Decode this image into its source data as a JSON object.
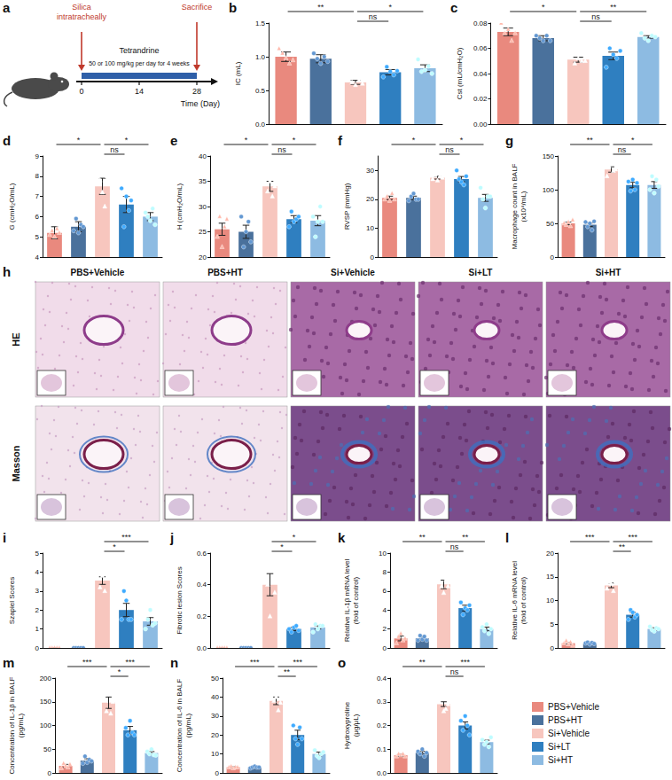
{
  "groups": [
    {
      "name": "PBS+Vehicle",
      "color": "#e9897e",
      "marker": "triangle"
    },
    {
      "name": "PBS+HT",
      "color": "#4a719c",
      "marker": "circle"
    },
    {
      "name": "Si+Vehicle",
      "color": "#f7c6be",
      "marker": "triangle"
    },
    {
      "name": "Si+LT",
      "color": "#2f7fc0",
      "marker": "circle"
    },
    {
      "name": "Si+HT",
      "color": "#8dbbe2",
      "marker": "circle"
    }
  ],
  "diagram": {
    "panel": "a",
    "events": [
      {
        "day": 0,
        "label": "Silica\nintratracheally"
      },
      {
        "day": 28,
        "label": "Sacrifice"
      }
    ],
    "treatment": [
      "Tetrandrine",
      "50 or 100 mg/kg per day for 4 weeks"
    ],
    "ticks": [
      0,
      14,
      28
    ],
    "axis_label": "Time (Day)"
  },
  "histology": {
    "panel": "h",
    "rows": [
      "HE",
      "Masson"
    ]
  },
  "chart_data": [
    {
      "panel": "b",
      "type": "bar",
      "y_label": "IC (mL)",
      "categories": [
        null,
        null,
        null,
        null,
        null
      ],
      "values": [
        1.0,
        0.97,
        0.62,
        0.77,
        0.83
      ],
      "errors": [
        0.07,
        0.06,
        0.03,
        0.04,
        0.05
      ],
      "points": [
        [
          1.12,
          1.05,
          0.98,
          0.9,
          0.95
        ],
        [
          1.05,
          0.97,
          0.9,
          1.0,
          0.93
        ],
        [
          0.66,
          0.62,
          0.58,
          0.65,
          0.6
        ],
        [
          0.7,
          0.85,
          0.78,
          0.73,
          0.79
        ],
        [
          0.96,
          0.78,
          0.8,
          0.86,
          0.75
        ]
      ],
      "ylim": [
        0,
        1.5
      ],
      "yticks": [
        {
          "value": 0,
          "label": "0.0"
        },
        {
          "value": 0.5,
          "label": "0.5"
        },
        {
          "value": 1,
          "label": "1.0"
        },
        {
          "value": 1.5,
          "label": "1.5"
        }
      ],
      "significance": [
        {
          "from": 0,
          "to": 2,
          "label": "**"
        },
        {
          "from": 2,
          "to": 4,
          "label": "*"
        },
        {
          "from": 2,
          "to": 3,
          "label": "ns"
        }
      ],
      "tick_labels": "y",
      "grid": false
    },
    {
      "panel": "c",
      "type": "bar",
      "y_label": "Cst (mL/cmH₂O)",
      "categories": [
        null,
        null,
        null,
        null,
        null
      ],
      "values": [
        0.073,
        0.068,
        0.051,
        0.054,
        0.069
      ],
      "errors": [
        0.003,
        0.002,
        0.002,
        0.003,
        0.001
      ],
      "points": [
        [
          0.08,
          0.072,
          0.075,
          0.066,
          0.072
        ],
        [
          0.07,
          0.068,
          0.066,
          0.07,
          0.066
        ],
        [
          0.055,
          0.048,
          0.052,
          0.05,
          0.05
        ],
        [
          0.045,
          0.06,
          0.055,
          0.052,
          0.058
        ],
        [
          0.072,
          0.068,
          0.066,
          0.07,
          0.069
        ]
      ],
      "ylim": [
        0,
        0.08
      ],
      "yticks": [
        {
          "value": 0,
          "label": "0.00"
        },
        {
          "value": 0.02,
          "label": "0.02"
        },
        {
          "value": 0.04,
          "label": "0.04"
        },
        {
          "value": 0.06,
          "label": "0.06"
        },
        {
          "value": 0.08,
          "label": "0.08"
        }
      ],
      "significance": [
        {
          "from": 0,
          "to": 2,
          "label": "*"
        },
        {
          "from": 2,
          "to": 4,
          "label": "**"
        },
        {
          "from": 2,
          "to": 3,
          "label": "ns"
        }
      ],
      "tick_labels": "y",
      "grid": false
    },
    {
      "panel": "d",
      "type": "bar",
      "y_label": "G (cmH₂O/mL)",
      "categories": [
        null,
        null,
        null,
        null,
        null
      ],
      "values": [
        5.2,
        5.5,
        7.5,
        6.6,
        6.0
      ],
      "errors": [
        0.3,
        0.25,
        0.4,
        0.4,
        0.2
      ],
      "points": [
        [
          5.1,
          5.3,
          5.0,
          5.4,
          5.2
        ],
        [
          5.3,
          5.9,
          5.2,
          5.6,
          5.5
        ],
        [
          8.0,
          7.8,
          7.2,
          6.5,
          8.0
        ],
        [
          7.4,
          5.5,
          7.0,
          6.3,
          6.8
        ],
        [
          6.2,
          6.0,
          5.8,
          6.4,
          5.6
        ]
      ],
      "ylim": [
        4,
        9
      ],
      "yticks": [
        4,
        5,
        6,
        7,
        8,
        9
      ],
      "significance": [
        {
          "from": 0,
          "to": 2,
          "label": "*"
        },
        {
          "from": 2,
          "to": 4,
          "label": "*"
        },
        {
          "from": 2,
          "to": 3,
          "label": "ns"
        }
      ],
      "tick_labels": "y",
      "grid": false
    },
    {
      "panel": "e",
      "type": "bar",
      "y_label": "H (cmH₂O/mL)",
      "categories": [
        null,
        null,
        null,
        null,
        null
      ],
      "values": [
        25.5,
        25,
        34,
        27.5,
        27.2
      ],
      "errors": [
        1.2,
        1.3,
        1.0,
        0.7,
        1.0
      ],
      "points": [
        [
          24,
          28,
          22,
          26,
          27.5
        ],
        [
          28,
          22,
          25,
          27,
          23
        ],
        [
          36,
          33,
          35,
          32,
          34
        ],
        [
          26,
          29,
          27,
          27.5,
          28
        ],
        [
          28,
          24,
          27,
          30,
          27
        ]
      ],
      "ylim": [
        20,
        40
      ],
      "yticks": [
        20,
        25,
        30,
        35,
        40
      ],
      "significance": [
        {
          "from": 0,
          "to": 2,
          "label": "*"
        },
        {
          "from": 2,
          "to": 4,
          "label": "*"
        },
        {
          "from": 2,
          "to": 3,
          "label": "ns"
        }
      ],
      "tick_labels": "y",
      "grid": false
    },
    {
      "panel": "f",
      "type": "bar",
      "y_label": "RVSP (mmHg)",
      "categories": [
        null,
        null,
        null,
        null,
        null
      ],
      "values": [
        20.5,
        20.5,
        27.5,
        27,
        20.5
      ],
      "errors": [
        0.6,
        0.6,
        0.5,
        0.9,
        1.2
      ],
      "points": [
        [
          20,
          21,
          19.5,
          22,
          20
        ],
        [
          19.5,
          21,
          22,
          20,
          20
        ],
        [
          27,
          28.5,
          26.5,
          28,
          27.5
        ],
        [
          30,
          27,
          26,
          25,
          28
        ],
        [
          24,
          20,
          17,
          21,
          21
        ]
      ],
      "ylim": [
        0,
        35
      ],
      "yticks": [
        0,
        10,
        20,
        30
      ],
      "significance": [
        {
          "from": 0,
          "to": 2,
          "label": "*"
        },
        {
          "from": 2,
          "to": 4,
          "label": "*"
        },
        {
          "from": 2,
          "to": 3,
          "label": "ns"
        }
      ],
      "tick_labels": "y",
      "grid": false
    },
    {
      "panel": "g",
      "type": "bar",
      "y_label": "Macrophage count in BALF\n(x10⁴/mL)",
      "categories": [
        null,
        null,
        null,
        null,
        null
      ],
      "values": [
        50,
        48,
        130,
        107,
        107
      ],
      "errors": [
        2,
        2.5,
        4,
        4,
        5
      ],
      "points": [
        [
          50,
          48,
          52,
          46,
          55
        ],
        [
          52,
          45,
          50,
          40,
          53
        ],
        [
          120,
          135,
          138,
          128,
          130
        ],
        [
          112,
          98,
          115,
          100,
          110
        ],
        [
          100,
          120,
          95,
          115,
          105
        ]
      ],
      "ylim": [
        0,
        150
      ],
      "yticks": [
        0,
        50,
        100,
        150
      ],
      "significance": [
        {
          "from": 0,
          "to": 2,
          "label": "**"
        },
        {
          "from": 2,
          "to": 4,
          "label": "*"
        },
        {
          "from": 2,
          "to": 3,
          "label": "ns"
        }
      ],
      "tick_labels": "y",
      "grid": false
    },
    {
      "panel": "i",
      "type": "bar",
      "y_label": "Szapiel Scores",
      "categories": [
        null,
        null,
        null,
        null,
        null
      ],
      "values": [
        0,
        0,
        3.55,
        2.0,
        1.4
      ],
      "errors": [
        0,
        0,
        0.2,
        0.35,
        0.2
      ],
      "points": [
        [
          0,
          0,
          0,
          0,
          0
        ],
        [
          0,
          0,
          0,
          0,
          0
        ],
        [
          4,
          3.2,
          3.8,
          3.0,
          3.75
        ],
        [
          1.5,
          3,
          2.5,
          1.5,
          1.5
        ],
        [
          1,
          1.5,
          2,
          1.2,
          1.3
        ]
      ],
      "ylim": [
        0,
        5
      ],
      "yticks": [
        0,
        1,
        2,
        3,
        4,
        5
      ],
      "significance": [
        {
          "from": 2,
          "to": 4,
          "label": "***"
        },
        {
          "from": 2,
          "to": 3,
          "label": "*"
        }
      ],
      "tick_labels": "y",
      "grid": false
    },
    {
      "panel": "j",
      "type": "bar",
      "y_label": "Fibrotic lesion Scores",
      "categories": [
        null,
        null,
        null,
        null,
        null
      ],
      "values": [
        0,
        0,
        0.4,
        0.12,
        0.13
      ],
      "errors": [
        0,
        0,
        0.07,
        0.01,
        0.01
      ],
      "points": [
        [
          0,
          0,
          0,
          0,
          0
        ],
        [
          0,
          0,
          0,
          0,
          0
        ],
        [
          0.55,
          0.4,
          0.2,
          0.5,
          0.35
        ],
        [
          0.12,
          0.1,
          0.13,
          0.14,
          0.11
        ],
        [
          0.1,
          0.15,
          0.12,
          0.14,
          0.14
        ]
      ],
      "ylim": [
        0,
        0.6
      ],
      "yticks": [
        {
          "value": 0,
          "label": "0.0"
        },
        {
          "value": 0.2,
          "label": "0.2"
        },
        {
          "value": 0.4,
          "label": "0.4"
        },
        {
          "value": 0.6,
          "label": "0.6"
        }
      ],
      "significance": [
        {
          "from": 2,
          "to": 4,
          "label": "*"
        },
        {
          "from": 2,
          "to": 3,
          "label": "*"
        }
      ],
      "tick_labels": "y",
      "grid": false
    },
    {
      "panel": "k",
      "type": "bar",
      "y_label": "Relative IL-1β mRNA level\n(fold of control)",
      "categories": [
        null,
        null,
        null,
        null,
        null
      ],
      "values": [
        1.0,
        1.0,
        6.7,
        4.2,
        2.0
      ],
      "errors": [
        0.25,
        0.2,
        0.45,
        0.3,
        0.2
      ],
      "points": [
        [
          0.5,
          1.2,
          1.5,
          0.8,
          1.0
        ],
        [
          0.8,
          1.3,
          0.9,
          1.2,
          0.8
        ],
        [
          7.5,
          6.5,
          5.8,
          7.2,
          6.5
        ],
        [
          4.8,
          3.5,
          4.2,
          4.0,
          4.5
        ],
        [
          2.2,
          1.8,
          2.5,
          1.5,
          2.0
        ]
      ],
      "ylim": [
        0,
        10
      ],
      "yticks": [
        0,
        2,
        4,
        6,
        8,
        10
      ],
      "significance": [
        {
          "from": 0,
          "to": 2,
          "label": "**"
        },
        {
          "from": 2,
          "to": 4,
          "label": "**"
        },
        {
          "from": 2,
          "to": 3,
          "label": "ns"
        }
      ],
      "tick_labels": "y",
      "grid": false
    },
    {
      "panel": "l",
      "type": "bar",
      "y_label": "Relative IL-6 mRNA level\n(fold of control)",
      "categories": [
        null,
        null,
        null,
        null,
        null
      ],
      "values": [
        1.0,
        1.0,
        13.2,
        7.0,
        4.0
      ],
      "errors": [
        0.2,
        0.1,
        0.5,
        0.5,
        0.25
      ],
      "points": [
        [
          1,
          1.5,
          0.8,
          1.2,
          0.5
        ],
        [
          1,
          1.2,
          0.8,
          1.1,
          0.9
        ],
        [
          12.5,
          14,
          13.5,
          12,
          14
        ],
        [
          6,
          8,
          7.5,
          6.5,
          7
        ],
        [
          4.5,
          3.8,
          3.5,
          4.2,
          4
        ]
      ],
      "ylim": [
        0,
        20
      ],
      "yticks": [
        0,
        5,
        10,
        15,
        20
      ],
      "significance": [
        {
          "from": 0,
          "to": 2,
          "label": "***"
        },
        {
          "from": 2,
          "to": 4,
          "label": "***"
        },
        {
          "from": 2,
          "to": 3,
          "label": "**"
        }
      ],
      "tick_labels": "y",
      "grid": false
    },
    {
      "panel": "m",
      "type": "bar",
      "y_label": "Concentration of IL-1β in BALF\n(pg/mL)",
      "categories": [
        null,
        null,
        null,
        null,
        null
      ],
      "values": [
        15,
        26,
        148,
        90,
        42
      ],
      "errors": [
        3,
        4,
        12,
        8,
        3
      ],
      "points": [
        [
          10,
          20,
          15,
          12,
          18
        ],
        [
          20,
          35,
          22,
          28,
          25
        ],
        [
          165,
          130,
          170,
          125,
          150
        ],
        [
          95,
          80,
          110,
          85,
          80
        ],
        [
          45,
          40,
          50,
          38,
          37
        ]
      ],
      "ylim": [
        0,
        200
      ],
      "yticks": [
        0,
        50,
        100,
        150,
        200
      ],
      "significance": [
        {
          "from": 0,
          "to": 2,
          "label": "***"
        },
        {
          "from": 2,
          "to": 4,
          "label": "***"
        },
        {
          "from": 2,
          "to": 3,
          "label": "*"
        }
      ],
      "tick_labels": "y",
      "grid": false
    },
    {
      "panel": "n",
      "type": "bar",
      "y_label": "Concentration of IL-6 in BALF\n(pg/mL)",
      "categories": [
        null,
        null,
        null,
        null,
        null
      ],
      "values": [
        3,
        3,
        38,
        20,
        10
      ],
      "errors": [
        0.3,
        0.3,
        2,
        2.5,
        1
      ],
      "points": [
        [
          3,
          3.5,
          2.5,
          3,
          3
        ],
        [
          2.5,
          3,
          3.5,
          3,
          3
        ],
        [
          42,
          38,
          40,
          33,
          37
        ],
        [
          25,
          18,
          15,
          24,
          18
        ],
        [
          12,
          9,
          8,
          10,
          11
        ]
      ],
      "ylim": [
        0,
        50
      ],
      "yticks": [
        0,
        10,
        20,
        30,
        40,
        50
      ],
      "significance": [
        {
          "from": 0,
          "to": 2,
          "label": "***"
        },
        {
          "from": 2,
          "to": 4,
          "label": "***"
        },
        {
          "from": 2,
          "to": 3,
          "label": "**"
        }
      ],
      "tick_labels": "y",
      "grid": false
    },
    {
      "panel": "o",
      "type": "bar",
      "y_label": "Hydroxyproline\n(μg/μL)",
      "categories": [
        null,
        null,
        null,
        null,
        null
      ],
      "values": [
        0.075,
        0.085,
        0.29,
        0.2,
        0.13
      ],
      "errors": [
        0.005,
        0.006,
        0.01,
        0.015,
        0.008
      ],
      "points": [
        [
          0.07,
          0.08,
          0.075,
          0.08,
          0.07
        ],
        [
          0.09,
          0.08,
          0.1,
          0.07,
          0.085
        ],
        [
          0.3,
          0.32,
          0.26,
          0.27,
          0.29
        ],
        [
          0.22,
          0.18,
          0.24,
          0.2,
          0.16
        ],
        [
          0.14,
          0.12,
          0.13,
          0.11,
          0.15
        ]
      ],
      "ylim": [
        0,
        0.4
      ],
      "yticks": [
        {
          "value": 0,
          "label": "0.0"
        },
        {
          "value": 0.1,
          "label": "0.1"
        },
        {
          "value": 0.2,
          "label": "0.2"
        },
        {
          "value": 0.3,
          "label": "0.3"
        },
        {
          "value": 0.4,
          "label": "0.4"
        }
      ],
      "significance": [
        {
          "from": 0,
          "to": 2,
          "label": "**"
        },
        {
          "from": 2,
          "to": 4,
          "label": "***"
        },
        {
          "from": 2,
          "to": 3,
          "label": "ns"
        }
      ],
      "tick_labels": "y",
      "grid": false
    }
  ]
}
